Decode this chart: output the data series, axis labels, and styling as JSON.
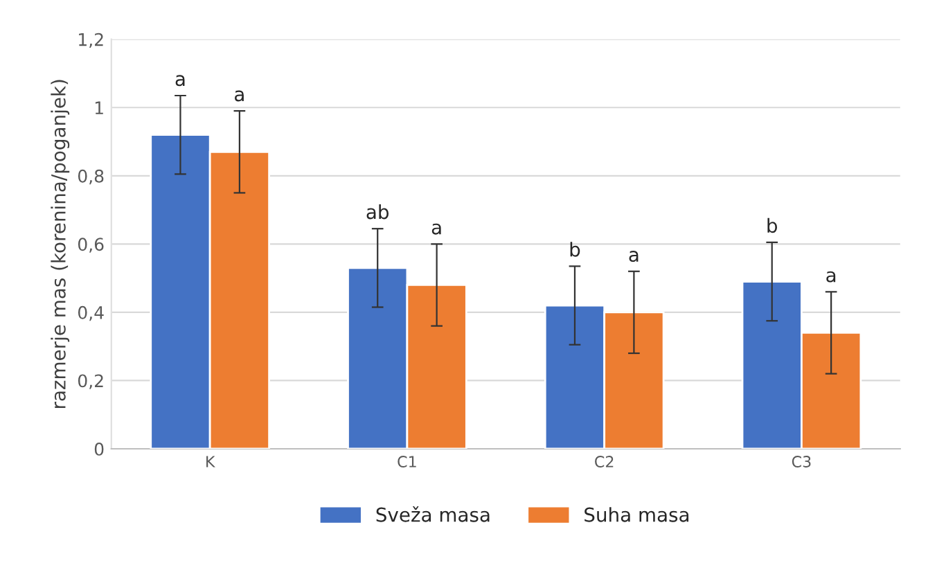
{
  "chart_data": {
    "type": "bar",
    "ylabel": "razmerje mas (korenina/poganjek)",
    "categories": [
      "K",
      "C1",
      "C2",
      "C3"
    ],
    "series": [
      {
        "name": "Sveža masa",
        "color": "#4472c4",
        "values": [
          0.92,
          0.53,
          0.42,
          0.49
        ],
        "errors": [
          0.115,
          0.115,
          0.115,
          0.115
        ]
      },
      {
        "name": "Suha masa",
        "color": "#ed7d31",
        "values": [
          0.87,
          0.48,
          0.4,
          0.34
        ],
        "errors": [
          0.12,
          0.12,
          0.12,
          0.12
        ]
      }
    ],
    "ylim": [
      0,
      1.2
    ],
    "yticks": [
      0,
      {
        "value": 0.2,
        "label": "0,2"
      },
      {
        "value": 0.4,
        "label": "0,4"
      },
      {
        "value": 0.6,
        "label": "0,6"
      },
      {
        "value": 0.8,
        "label": "0,8"
      },
      1,
      {
        "value": 1.2,
        "label": "1,2"
      }
    ],
    "annotations": [
      "a",
      "a",
      "ab",
      "a",
      "b",
      "a",
      "b",
      "a"
    ],
    "grid": "y",
    "legend": "bottom"
  }
}
